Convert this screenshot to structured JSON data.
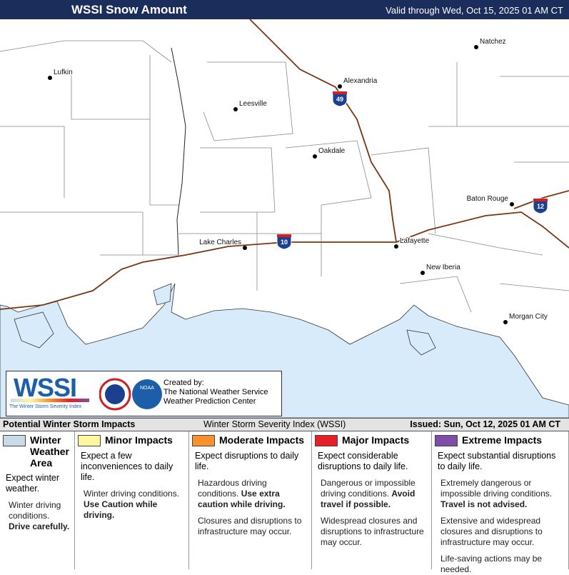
{
  "header": {
    "title": "WSSI Snow Amount",
    "valid": "Valid through Wed, Oct 15, 2025 01 AM CT"
  },
  "cities": [
    "Lufkin",
    "Leesville",
    "Alexandria",
    "Natchez",
    "Oakdale",
    "Baton Rouge",
    "Lake Charles",
    "Lafayette",
    "New Iberia",
    "Morgan City"
  ],
  "interstates": [
    "49",
    "10",
    "12"
  ],
  "logo": {
    "wordmark": "WSSI",
    "tagline": "The Winter Storm Severity Index",
    "credit": [
      "Created by:",
      "The National Weather Service",
      "Weather Prediction Center"
    ],
    "noaa": "NOAA"
  },
  "bar": {
    "left": "Potential Winter Storm Impacts",
    "center": "Winter Storm Severity Index (WSSI)",
    "right": "Issued: Sun, Oct 12, 2025 01 AM CT"
  },
  "legend": [
    {
      "title": "Winter Weather Area",
      "color": "#c9dbe8",
      "summary": "Expect winter weather.",
      "bullets": [
        {
          "text": "Winter driving conditions.",
          "emphasis": "Drive carefully."
        }
      ]
    },
    {
      "title": "Minor Impacts",
      "color": "#fff7a0",
      "summary": "Expect a few inconveniences to daily life.",
      "bullets": [
        {
          "text": "Winter driving conditions.",
          "emphasis": "Use Caution while driving."
        }
      ]
    },
    {
      "title": "Moderate Impacts",
      "color": "#f7922e",
      "summary": "Expect disruptions to daily life.",
      "bullets": [
        {
          "text": "Hazardous driving conditions.",
          "emphasis": "Use extra caution while driving."
        },
        {
          "text": "Closures and disruptions to infrastructure may occur."
        }
      ]
    },
    {
      "title": "Major Impacts",
      "color": "#e5202b",
      "summary": "Expect considerable disruptions to daily life.",
      "bullets": [
        {
          "text": "Dangerous or impossible driving conditions.",
          "emphasis": "Avoid travel if possible."
        },
        {
          "text": "Widespread closures and disruptions to infrastructure may occur."
        }
      ]
    },
    {
      "title": "Extreme Impacts",
      "color": "#7d4ea3",
      "summary": "Expect substantial disruptions to daily life.",
      "bullets": [
        {
          "text": "Extremely dangerous or impossible driving conditions.",
          "emphasis": "Travel is not advised."
        },
        {
          "text": "Extensive and widespread closures and disruptions to infrastructure may occur."
        },
        {
          "text": "Life-saving actions may be needed."
        }
      ]
    }
  ]
}
